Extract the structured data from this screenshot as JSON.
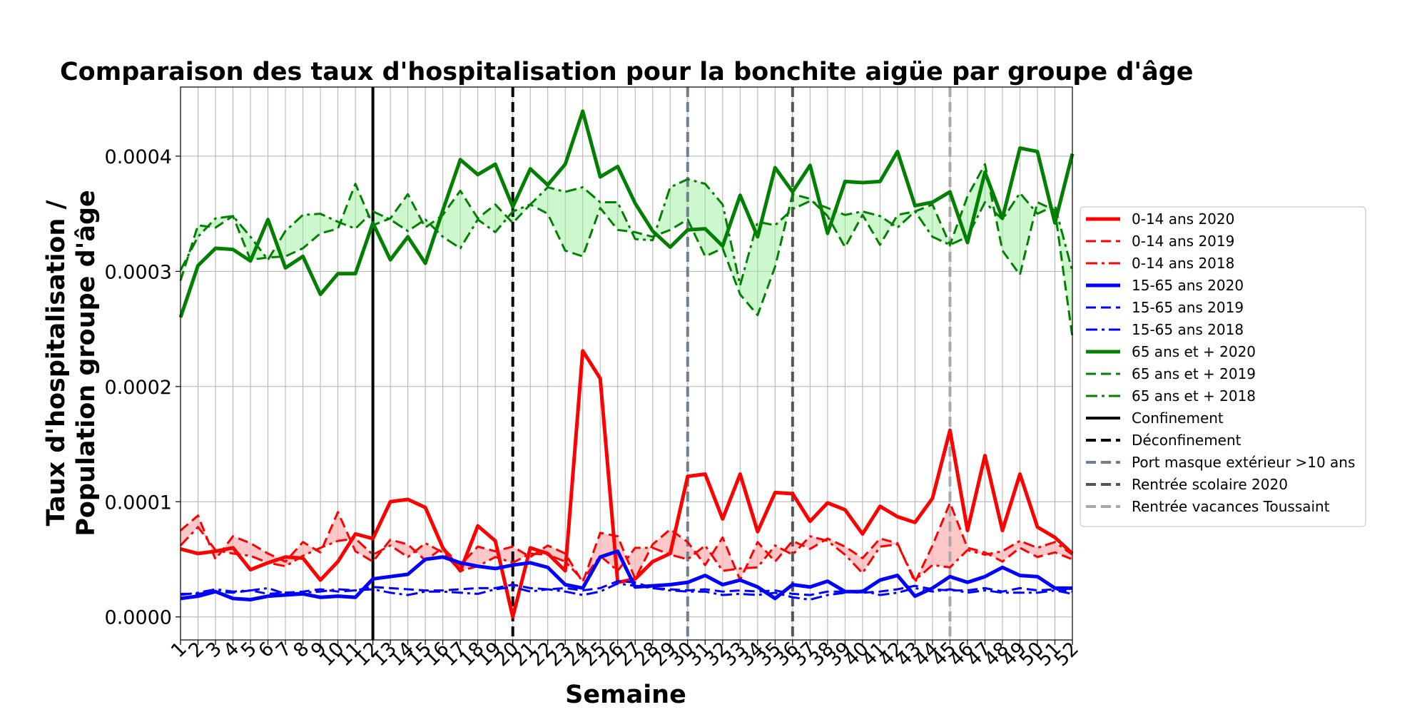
{
  "chart_data": {
    "type": "line",
    "title": "Comparaison des taux d'hospitalisation pour la bonchite aigüe par groupe d'âge",
    "xlabel": "Semaine",
    "ylabel_line1": "Taux d'hospitalisation /",
    "ylabel_line2": "Population groupe d'âge",
    "x": [
      1,
      2,
      3,
      4,
      5,
      6,
      7,
      8,
      9,
      10,
      11,
      12,
      13,
      14,
      15,
      16,
      17,
      18,
      19,
      20,
      21,
      22,
      23,
      24,
      25,
      26,
      27,
      28,
      29,
      30,
      31,
      32,
      33,
      34,
      35,
      36,
      37,
      38,
      39,
      40,
      41,
      42,
      43,
      44,
      45,
      46,
      47,
      48,
      49,
      50,
      51,
      52
    ],
    "xlim": [
      1,
      52
    ],
    "ylim": [
      -2e-05,
      0.00046
    ],
    "yticks": [
      0.0,
      0.0001,
      0.0002,
      0.0003,
      0.0004
    ],
    "ytick_labels": [
      "0.0000",
      "0.0001",
      "0.0002",
      "0.0003",
      "0.0004"
    ],
    "grid": true,
    "legend_position": "right",
    "series": [
      {
        "name": "0-14 ans 2020",
        "color": "#ff0000",
        "style": "solid",
        "width": 5,
        "values": [
          5.9e-05,
          5.5e-05,
          5.7e-05,
          6e-05,
          4.1e-05,
          4.7e-05,
          5.2e-05,
          5.1e-05,
          3.2e-05,
          4.8e-05,
          7.2e-05,
          6.8e-05,
          0.0001,
          0.000102,
          9.5e-05,
          6e-05,
          4e-05,
          7.9e-05,
          6.6e-05,
          0.0,
          6e-05,
          5.5e-05,
          4e-05,
          0.000231,
          0.000207,
          3e-05,
          3.3e-05,
          4.8e-05,
          5.5e-05,
          0.000122,
          0.000124,
          8.5e-05,
          0.000124,
          7.4e-05,
          0.000108,
          0.000107,
          8.3e-05,
          9.9e-05,
          9.3e-05,
          7.2e-05,
          9.6e-05,
          8.7e-05,
          8.2e-05,
          0.000103,
          0.000162,
          7.5e-05,
          0.00014,
          7.5e-05,
          0.000124,
          7.8e-05,
          6.9e-05,
          5.5e-05
        ]
      },
      {
        "name": "0-14 ans 2019",
        "color": "#ff0000",
        "style": "dashed",
        "width": 3,
        "values": [
          7.5e-05,
          8.8e-05,
          5e-05,
          7e-05,
          6.4e-05,
          5.5e-05,
          4.8e-05,
          6.5e-05,
          5.6e-05,
          9.1e-05,
          5.7e-05,
          4.8e-05,
          6.7e-05,
          6.3e-05,
          4.9e-05,
          6e-05,
          4.5e-05,
          6.1e-05,
          5.7e-05,
          6.1e-05,
          5.2e-05,
          6.2e-05,
          5.5e-05,
          3e-05,
          7.3e-05,
          7e-05,
          3.3e-05,
          6.3e-05,
          7.6e-05,
          6.5e-05,
          4.5e-05,
          6.9e-05,
          3.2e-05,
          6.5e-05,
          4.8e-05,
          6.6e-05,
          5.9e-05,
          6.8e-05,
          6.1e-05,
          5.1e-05,
          6.8e-05,
          6.4e-05,
          3e-05,
          6.2e-05,
          9.9e-05,
          6e-05,
          5.6e-05,
          4.8e-05,
          6e-05,
          5.2e-05,
          5.6e-05,
          5e-05
        ]
      },
      {
        "name": "0-14 ans 2018",
        "color": "#ff0000",
        "style": "dashdot",
        "width": 3,
        "values": [
          6.2e-05,
          7.8e-05,
          5.8e-05,
          5.5e-05,
          5.3e-05,
          4.7e-05,
          4.4e-05,
          5.3e-05,
          6e-05,
          6.6e-05,
          6.8e-05,
          5.4e-05,
          6.2e-05,
          5.2e-05,
          6.4e-05,
          5.6e-05,
          4e-05,
          4.4e-05,
          5.2e-05,
          4.7e-05,
          5.5e-05,
          5.4e-05,
          4.8e-05,
          3.2e-05,
          5.3e-05,
          4e-05,
          6e-05,
          6e-05,
          5.4e-05,
          5e-05,
          6.2e-05,
          4e-05,
          4.2e-05,
          4.3e-05,
          6.2e-05,
          5.4e-05,
          7e-05,
          6.6e-05,
          5.4e-05,
          3.8e-05,
          6.1e-05,
          6.3e-05,
          3.2e-05,
          4.5e-05,
          4.3e-05,
          5.8e-05,
          5.4e-05,
          5.7e-05,
          6.6e-05,
          6e-05,
          6.5e-05,
          5.4e-05
        ]
      },
      {
        "name": "15-65 ans 2020",
        "color": "#0000ff",
        "style": "solid",
        "width": 5,
        "values": [
          1.6e-05,
          1.8e-05,
          2.2e-05,
          1.6e-05,
          1.5e-05,
          1.8e-05,
          1.9e-05,
          2e-05,
          1.7e-05,
          1.8e-05,
          1.7e-05,
          3.3e-05,
          3.5e-05,
          3.7e-05,
          5e-05,
          5.2e-05,
          4.7e-05,
          4.4e-05,
          4.2e-05,
          4.5e-05,
          4.7e-05,
          4.3e-05,
          2.8e-05,
          2.5e-05,
          5.2e-05,
          5.7e-05,
          2.6e-05,
          2.7e-05,
          2.8e-05,
          3e-05,
          3.6e-05,
          2.8e-05,
          3.2e-05,
          2.6e-05,
          1.6e-05,
          2.8e-05,
          2.6e-05,
          3.1e-05,
          2.2e-05,
          2.2e-05,
          3.2e-05,
          3.6e-05,
          1.8e-05,
          2.5e-05,
          3.5e-05,
          3e-05,
          3.5e-05,
          4.3e-05,
          3.6e-05,
          3.5e-05,
          2.5e-05,
          2.5e-05
        ]
      },
      {
        "name": "15-65 ans 2019",
        "color": "#0000ff",
        "style": "dashed",
        "width": 3,
        "values": [
          2e-05,
          2e-05,
          2.2e-05,
          2.1e-05,
          2.3e-05,
          2e-05,
          2.1e-05,
          2.2e-05,
          2.4e-05,
          2.2e-05,
          2.3e-05,
          2.6e-05,
          2.5e-05,
          2.4e-05,
          2.3e-05,
          2.3e-05,
          2.4e-05,
          2.5e-05,
          2.5e-05,
          2.8e-05,
          2.5e-05,
          2.4e-05,
          2.5e-05,
          2.3e-05,
          2.5e-05,
          3.1e-05,
          3e-05,
          2.5e-05,
          2.4e-05,
          2.3e-05,
          2.4e-05,
          2.2e-05,
          2.3e-05,
          2.2e-05,
          2.3e-05,
          2e-05,
          1.9e-05,
          2.2e-05,
          2.2e-05,
          2.1e-05,
          2.2e-05,
          2.4e-05,
          2.7e-05,
          2.4e-05,
          2.3e-05,
          2.3e-05,
          2.5e-05,
          2.2e-05,
          2.5e-05,
          2.3e-05,
          2.4e-05,
          2.2e-05
        ]
      },
      {
        "name": "15-65 ans 2018",
        "color": "#0000ff",
        "style": "dashdot",
        "width": 3,
        "values": [
          1.9e-05,
          2.1e-05,
          2.4e-05,
          2.2e-05,
          2.3e-05,
          2.5e-05,
          2e-05,
          2.1e-05,
          2.2e-05,
          2.4e-05,
          2.3e-05,
          2.4e-05,
          2.1e-05,
          1.9e-05,
          2.2e-05,
          2.2e-05,
          2.1e-05,
          2e-05,
          2.4e-05,
          2.6e-05,
          2.2e-05,
          2.4e-05,
          2.2e-05,
          1.9e-05,
          2.2e-05,
          2.9e-05,
          2.7e-05,
          2.5e-05,
          2.3e-05,
          2.2e-05,
          2.2e-05,
          1.9e-05,
          2e-05,
          1.9e-05,
          2.1e-05,
          1.7e-05,
          1.5e-05,
          1.9e-05,
          2.1e-05,
          2.3e-05,
          1.9e-05,
          2.1e-05,
          2.5e-05,
          2.2e-05,
          2.4e-05,
          2.1e-05,
          2.3e-05,
          2.1e-05,
          2.1e-05,
          2.1e-05,
          2.3e-05,
          2e-05
        ]
      },
      {
        "name": "65 ans et + 2020",
        "color": "#008000",
        "style": "solid",
        "width": 5,
        "values": [
          0.00026,
          0.000305,
          0.00032,
          0.000319,
          0.000309,
          0.000345,
          0.000303,
          0.000313,
          0.00028,
          0.000298,
          0.000298,
          0.000342,
          0.00031,
          0.00033,
          0.000307,
          0.000353,
          0.000397,
          0.000384,
          0.000393,
          0.000356,
          0.000389,
          0.000375,
          0.000393,
          0.000439,
          0.000382,
          0.000391,
          0.000359,
          0.000335,
          0.000321,
          0.000336,
          0.000337,
          0.000322,
          0.000366,
          0.00033,
          0.00039,
          0.000369,
          0.000392,
          0.000333,
          0.000378,
          0.000377,
          0.000378,
          0.000404,
          0.000357,
          0.00036,
          0.000369,
          0.000325,
          0.000386,
          0.000346,
          0.000407,
          0.000404,
          0.000342,
          0.000402
        ]
      },
      {
        "name": "65 ans et + 2019",
        "color": "#008000",
        "style": "dashed",
        "width": 3,
        "values": [
          0.000292,
          0.00034,
          0.000338,
          0.000348,
          0.00031,
          0.000312,
          0.000313,
          0.00032,
          0.000333,
          0.000337,
          0.000376,
          0.00034,
          0.000346,
          0.000367,
          0.000338,
          0.000349,
          0.00037,
          0.000346,
          0.000358,
          0.000342,
          0.000358,
          0.00035,
          0.000318,
          0.000313,
          0.000355,
          0.000336,
          0.000334,
          0.00033,
          0.000336,
          0.000345,
          0.000313,
          0.00032,
          0.00028,
          0.000262,
          0.000304,
          0.000367,
          0.000363,
          0.000348,
          0.000321,
          0.000349,
          0.000323,
          0.000349,
          0.000352,
          0.000358,
          0.000323,
          0.000365,
          0.000393,
          0.000318,
          0.000297,
          0.00036,
          0.000353,
          0.000243
        ]
      },
      {
        "name": "65 ans et + 2018",
        "color": "#008000",
        "style": "dashdot",
        "width": 3,
        "values": [
          0.000301,
          0.00033,
          0.000346,
          0.000348,
          0.00033,
          0.00031,
          0.000335,
          0.000349,
          0.00035,
          0.000343,
          0.000337,
          0.000352,
          0.000345,
          0.000335,
          0.000345,
          0.00033,
          0.00032,
          0.000345,
          0.000334,
          0.000352,
          0.000358,
          0.000373,
          0.000369,
          0.000373,
          0.00036,
          0.00036,
          0.000328,
          0.000327,
          0.000373,
          0.00038,
          0.000376,
          0.000358,
          0.000288,
          0.000343,
          0.00034,
          0.000354,
          0.000361,
          0.000355,
          0.000349,
          0.000352,
          0.000348,
          0.000338,
          0.000352,
          0.00033,
          0.000323,
          0.00033,
          0.00036,
          0.000345,
          0.000368,
          0.00035,
          0.000357,
          0.0003
        ]
      }
    ],
    "fill_between": [
      {
        "series_a": 1,
        "series_b": 2,
        "color": "#ffb0b0",
        "opacity": 0.7
      },
      {
        "series_a": 7,
        "series_b": 8,
        "color": "#90f090",
        "opacity": 0.45
      }
    ],
    "vlines": [
      {
        "name": "Confinement",
        "x": 12,
        "color": "#000000",
        "style": "solid",
        "width": 4
      },
      {
        "name": "Déconfinement",
        "x": 20,
        "color": "#000000",
        "style": "dashed",
        "width": 4
      },
      {
        "name": "Port masque extérieur >10 ans",
        "x": 30,
        "color": "#708090",
        "style": "dashed",
        "width": 4
      },
      {
        "name": "Rentrée scolaire 2020",
        "x": 36,
        "color": "#555555",
        "style": "dashed",
        "width": 4
      },
      {
        "name": "Rentrée vacances Toussaint",
        "x": 45,
        "color": "#a9a9a9",
        "style": "dashed",
        "width": 4
      }
    ]
  }
}
